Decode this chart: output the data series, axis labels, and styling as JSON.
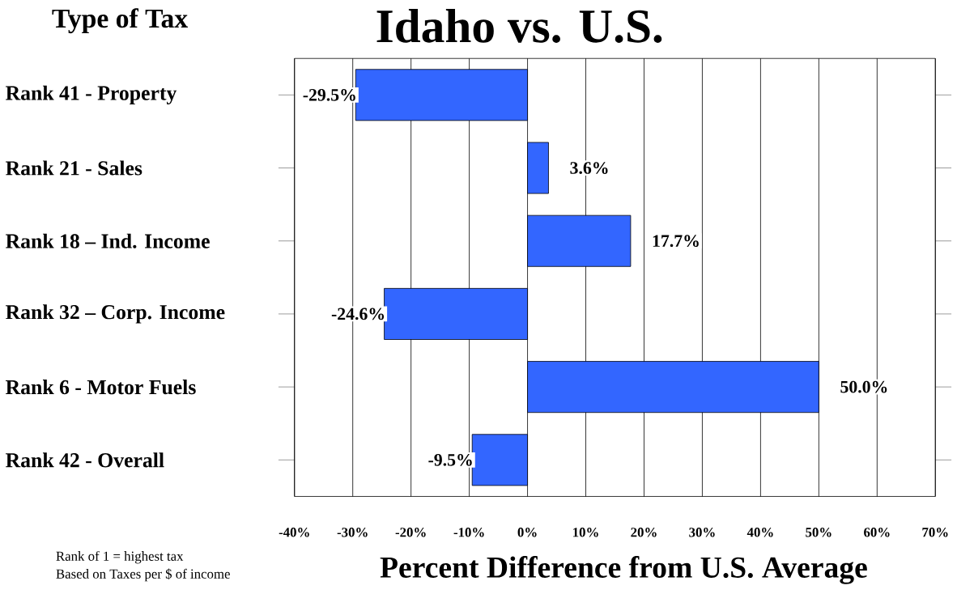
{
  "chart_data": {
    "type": "bar",
    "orientation": "horizontal",
    "title": "Idaho vs. U.S.",
    "ylabel": "Type of Tax",
    "xlabel": "Percent Difference from U.S. Average",
    "categories": [
      "Rank 41 - Property",
      "Rank 21 - Sales",
      "Rank 18 – Ind. Income",
      "Rank 32 – Corp. Income",
      "Rank 6 - Motor Fuels",
      "Rank 42 - Overall"
    ],
    "values": [
      -29.5,
      3.6,
      17.7,
      -24.6,
      50.0,
      -9.5
    ],
    "value_labels": [
      "-29.5%",
      "3.6%",
      "17.7%",
      "-24.6%",
      "50.0%",
      "-9.5%"
    ],
    "color": "#3366ff",
    "xlim": [
      -40,
      70
    ],
    "xticks": [
      {
        "value": -40,
        "label": "-40%"
      },
      {
        "value": -30,
        "label": "-30%"
      },
      {
        "value": -20,
        "label": "-20%"
      },
      {
        "value": -10,
        "label": "-10%"
      },
      {
        "value": 0,
        "label": "0%"
      },
      {
        "value": 10,
        "label": "10%"
      },
      {
        "value": 20,
        "label": "20%"
      },
      {
        "value": 30,
        "label": "30%"
      },
      {
        "value": 40,
        "label": "40%"
      },
      {
        "value": 50,
        "label": "50%"
      },
      {
        "value": 60,
        "label": "60%"
      },
      {
        "value": 70,
        "label": "70%"
      }
    ],
    "grid": "x",
    "annotations": [
      "Rank of 1 = highest tax",
      "Based on Taxes per $ of income"
    ]
  }
}
